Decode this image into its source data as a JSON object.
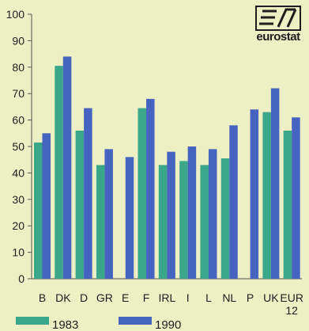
{
  "logo": {
    "text": "eurostat"
  },
  "chart_data": {
    "type": "bar",
    "categories": [
      "B",
      "DK",
      "D",
      "GR",
      "E",
      "F",
      "IRL",
      "I",
      "L",
      "NL",
      "P",
      "UK",
      "EUR 12"
    ],
    "series": [
      {
        "name": "1983",
        "color": "#3aa68a",
        "values": [
          51.5,
          80.5,
          56,
          43,
          null,
          64.5,
          43,
          44.5,
          43,
          45.5,
          null,
          63,
          56
        ]
      },
      {
        "name": "1990",
        "color": "#4763c0",
        "values": [
          55,
          84,
          64.5,
          49,
          46,
          68,
          48,
          50,
          49,
          58,
          64,
          72,
          61
        ]
      }
    ],
    "ylim": [
      0,
      100
    ],
    "yticks": [
      0,
      10,
      20,
      30,
      40,
      50,
      60,
      70,
      80,
      90,
      100
    ],
    "grid": false,
    "legend": "bottom",
    "title": "",
    "xlabel": "",
    "ylabel": ""
  }
}
